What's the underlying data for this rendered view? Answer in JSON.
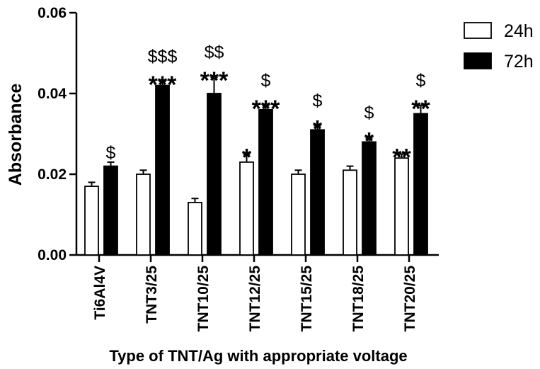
{
  "chart_data": {
    "type": "bar",
    "title": "",
    "xlabel": "Type of TNT/Ag with appropriate voltage",
    "ylabel": "Absorbance",
    "ylim": [
      0,
      0.06
    ],
    "yticks": [
      "0.00",
      "0.02",
      "0.04",
      "0.06"
    ],
    "categories": [
      "Ti6Al4V",
      "TNT3/25",
      "TNT10/25",
      "TNT12/25",
      "TNT15/25",
      "TNT18/25",
      "TNT20/25"
    ],
    "legend_position": "top-right",
    "grid": false,
    "series": [
      {
        "name": "24h",
        "color": "#ffffff",
        "values": [
          0.017,
          0.02,
          0.013,
          0.023,
          0.02,
          0.021,
          0.024
        ],
        "errors": [
          0.001,
          0.001,
          0.001,
          0.002,
          0.001,
          0.001,
          0.001
        ],
        "stars": [
          "",
          "",
          "",
          "*",
          "",
          "",
          "**"
        ],
        "dollars": [
          "",
          "",
          "",
          "",
          "",
          "",
          ""
        ]
      },
      {
        "name": "72h",
        "color": "#000000",
        "values": [
          0.022,
          0.042,
          0.04,
          0.036,
          0.031,
          0.028,
          0.035
        ],
        "errors": [
          0.001,
          0.001,
          0.004,
          0.001,
          0.001,
          0.001,
          0.002
        ],
        "stars": [
          "",
          "***",
          "***",
          "***",
          "*",
          "*",
          "**"
        ],
        "dollars": [
          "$",
          "$$$",
          "$$",
          "$",
          "$",
          "$",
          "$"
        ]
      }
    ]
  }
}
